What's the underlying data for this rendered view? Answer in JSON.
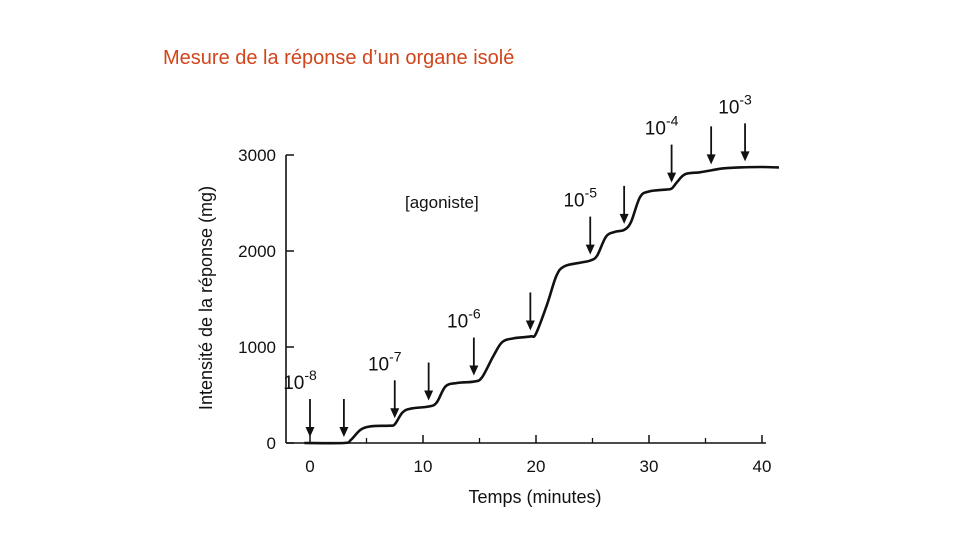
{
  "slide": {
    "title": "Mesure de la réponse d’un organe isolé"
  },
  "chart_data": {
    "type": "line",
    "title": "",
    "xlabel": "Temps (minutes)",
    "ylabel": "Intensité de la réponse (mg)",
    "xlim": [
      0,
      40
    ],
    "ylim": [
      0,
      3000
    ],
    "x_ticks": [
      "0",
      "10",
      "20",
      "30",
      "40"
    ],
    "y_ticks": [
      "0",
      "1000",
      "2000",
      "3000"
    ],
    "grid": false,
    "series": [
      {
        "points": [
          [
            -0.5,
            0
          ],
          [
            3,
            0
          ],
          [
            3.6,
            30
          ],
          [
            4.5,
            140
          ],
          [
            5.5,
            175
          ],
          [
            7,
            180
          ],
          [
            7.5,
            195
          ],
          [
            8.2,
            320
          ],
          [
            9,
            360
          ],
          [
            10.5,
            380
          ],
          [
            11.2,
            420
          ],
          [
            12,
            590
          ],
          [
            13,
            625
          ],
          [
            14.5,
            640
          ],
          [
            15.2,
            680
          ],
          [
            16.2,
            900
          ],
          [
            17,
            1050
          ],
          [
            18,
            1090
          ],
          [
            19.5,
            1110
          ],
          [
            20,
            1140
          ],
          [
            21,
            1450
          ],
          [
            21.8,
            1740
          ],
          [
            22.5,
            1840
          ],
          [
            24,
            1880
          ],
          [
            24.8,
            1900
          ],
          [
            25.4,
            1950
          ],
          [
            26.2,
            2150
          ],
          [
            27,
            2200
          ],
          [
            27.8,
            2220
          ],
          [
            28.4,
            2300
          ],
          [
            29.2,
            2560
          ],
          [
            30,
            2620
          ],
          [
            31.5,
            2640
          ],
          [
            32,
            2650
          ],
          [
            32.5,
            2720
          ],
          [
            33.2,
            2800
          ],
          [
            34.5,
            2820
          ],
          [
            35.5,
            2840
          ],
          [
            36.5,
            2860
          ],
          [
            38,
            2870
          ],
          [
            40,
            2875
          ],
          [
            41.5,
            2870
          ]
        ]
      }
    ],
    "dose_arrows": [
      {
        "x": 0,
        "label_base": "10",
        "label_exp": "-8"
      },
      {
        "x": 3,
        "label_base": "",
        "label_exp": ""
      },
      {
        "x": 7.5,
        "label_base": "10",
        "label_exp": "-7"
      },
      {
        "x": 10.5,
        "label_base": "",
        "label_exp": ""
      },
      {
        "x": 14.5,
        "label_base": "10",
        "label_exp": "-6"
      },
      {
        "x": 19.5,
        "label_base": "",
        "label_exp": ""
      },
      {
        "x": 24.8,
        "label_base": "10",
        "label_exp": "-5"
      },
      {
        "x": 27.8,
        "label_base": "",
        "label_exp": ""
      },
      {
        "x": 32,
        "label_base": "10",
        "label_exp": "-4"
      },
      {
        "x": 35.5,
        "label_base": "",
        "label_exp": ""
      },
      {
        "x": 38.5,
        "label_base": "10",
        "label_exp": "-3"
      }
    ],
    "annotation": "[agoniste]"
  }
}
